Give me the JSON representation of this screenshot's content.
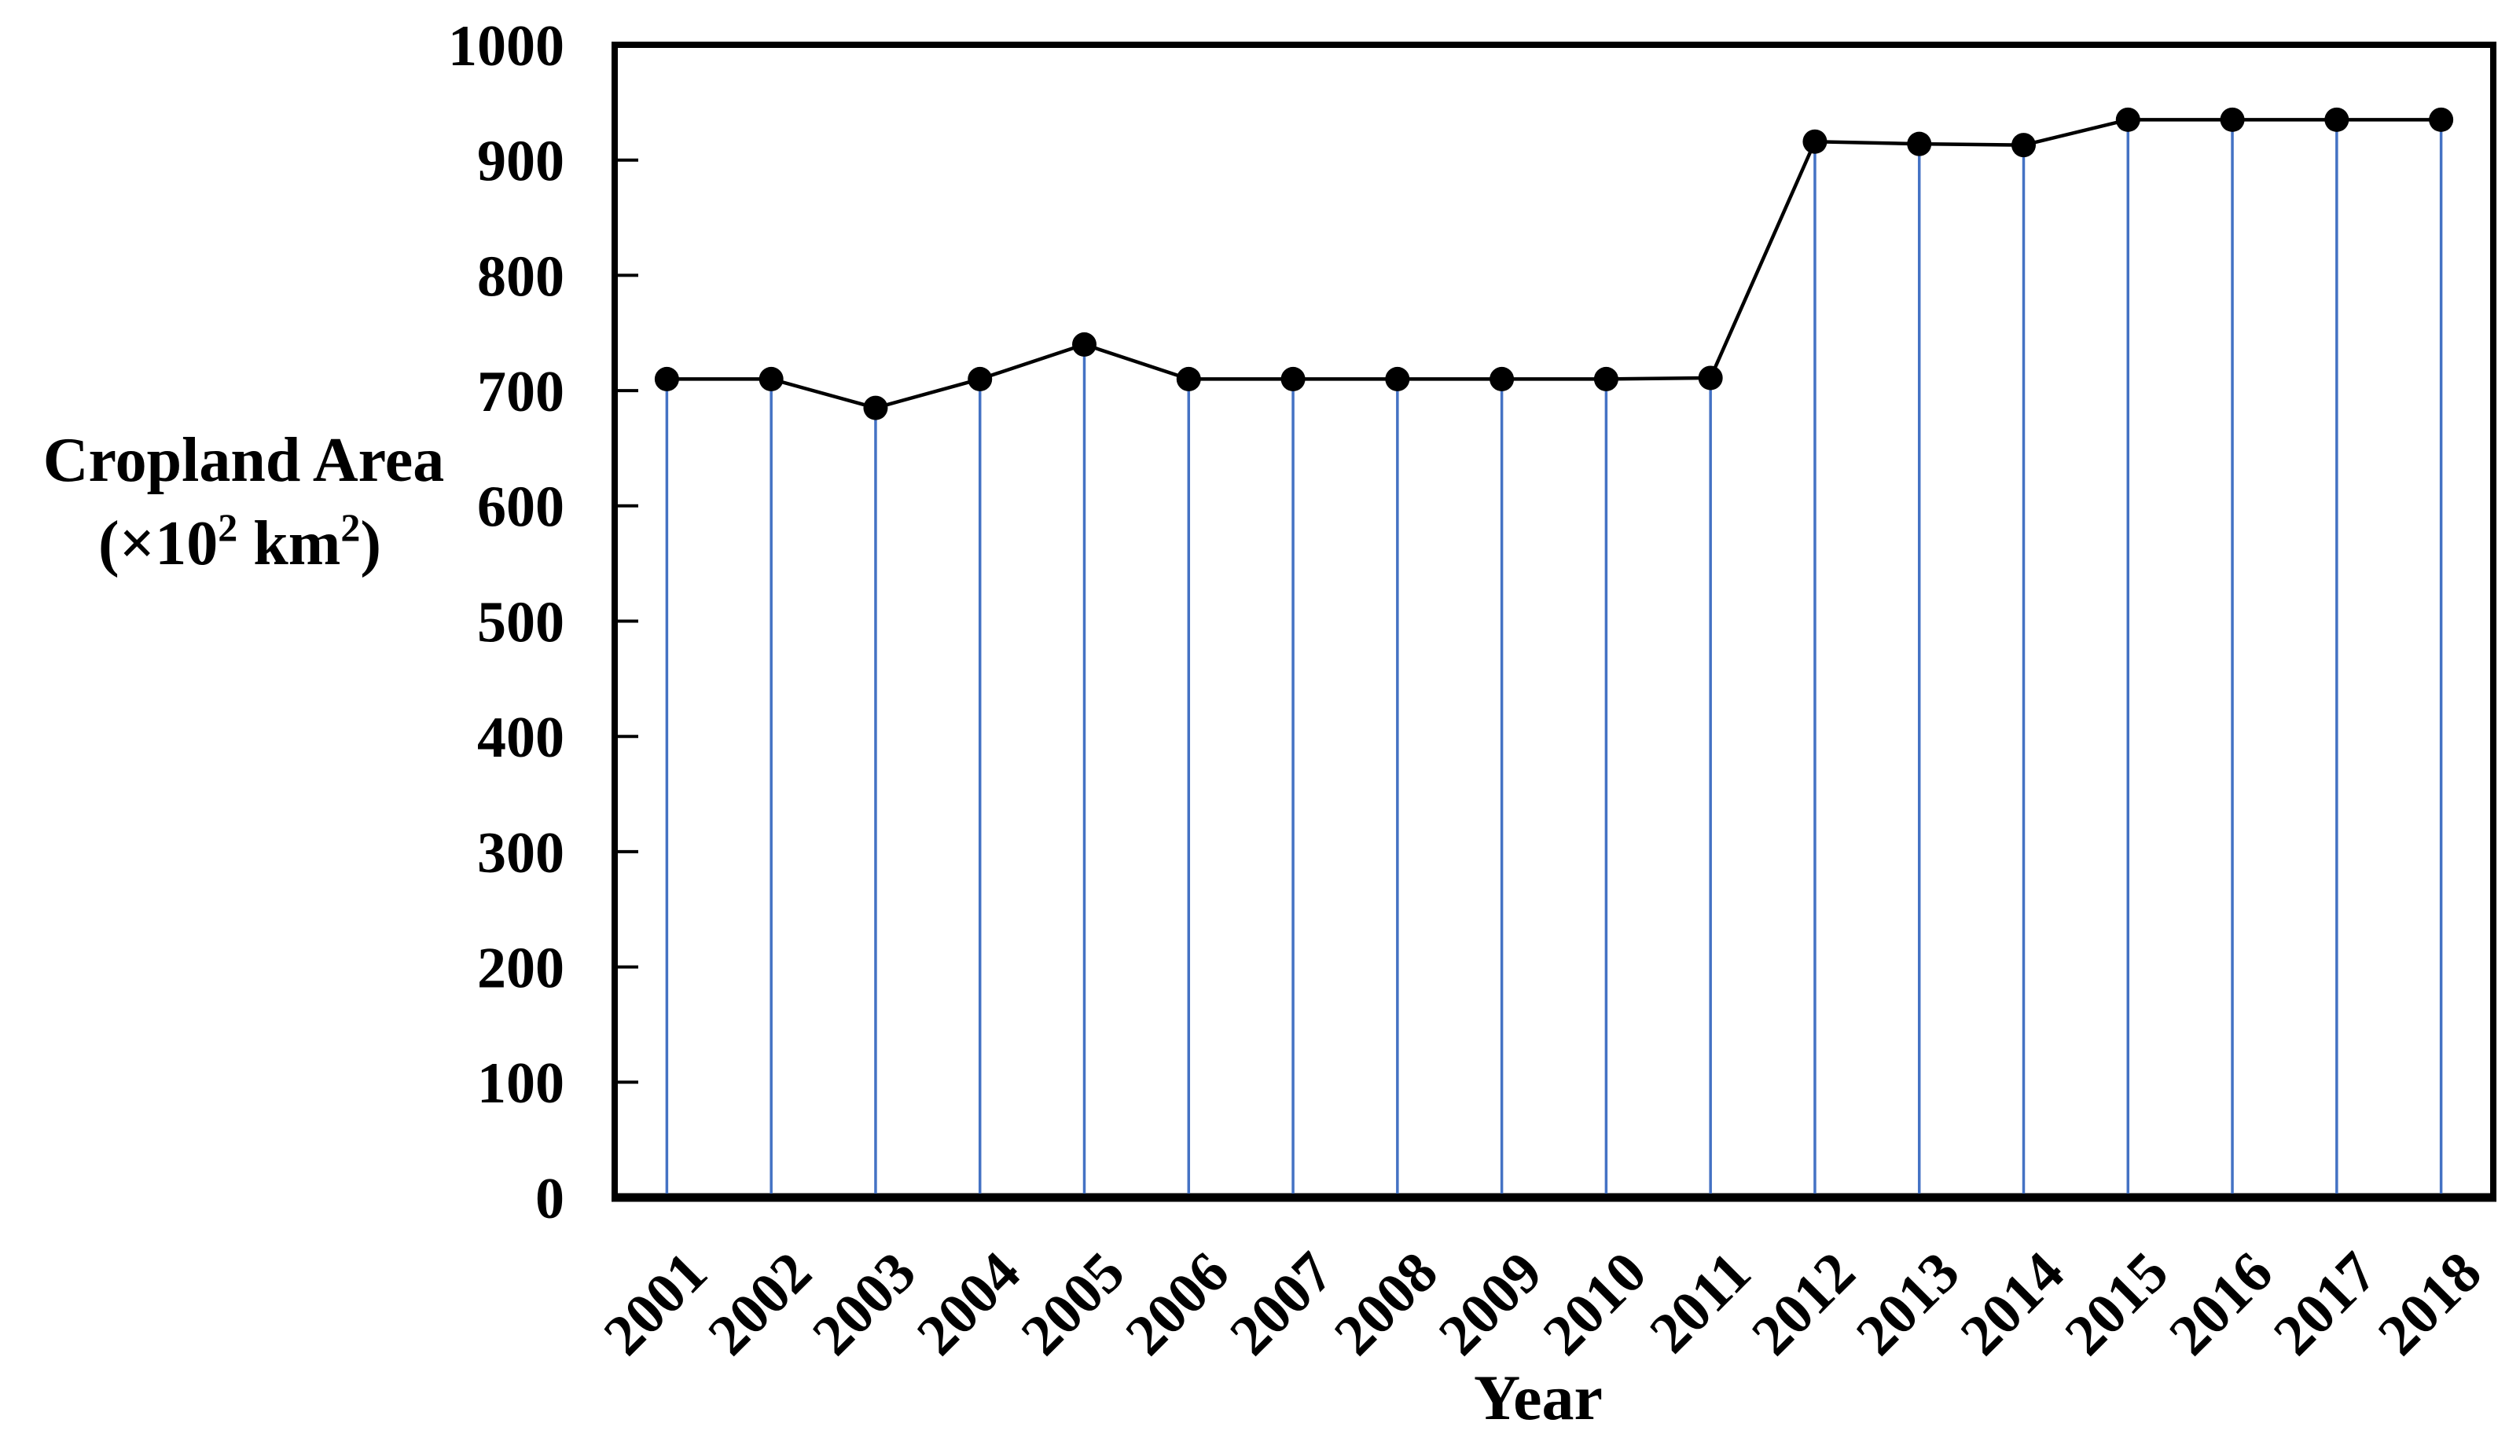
{
  "figure": {
    "background": "#ffffff",
    "axis_color": "#000000"
  },
  "axis_y": {
    "title_line1": "Cropland Area",
    "title_line2_prefix": "(×10",
    "title_line2_sup1": "2",
    "title_line2_mid": " km",
    "title_line2_sup2": "2",
    "title_line2_suffix": ")"
  },
  "axis_x": {
    "title": "Year"
  },
  "chart_data": {
    "type": "line",
    "title": "",
    "categories": [
      "2001",
      "2002",
      "2003",
      "2004",
      "2005",
      "2006",
      "2007",
      "2008",
      "2009",
      "2010",
      "2011",
      "2012",
      "2013",
      "2014",
      "2015",
      "2016",
      "2017",
      "2018"
    ],
    "values": [
      710,
      710,
      685,
      710,
      740,
      710,
      710,
      710,
      710,
      710,
      711,
      916,
      914,
      913,
      935,
      935,
      935,
      935
    ],
    "xlabel": "Year",
    "ylabel": "Cropland Area (×10² km²)",
    "ylim": [
      0,
      1000
    ],
    "ytick_step": 100,
    "yticks": [
      0,
      100,
      200,
      300,
      400,
      500,
      600,
      700,
      800,
      900,
      1000
    ],
    "grid": false,
    "legend": "none",
    "line_color": "#000000",
    "marker_color": "#000000",
    "dropline_color": "#4472C4",
    "marker_shape": "circle"
  }
}
